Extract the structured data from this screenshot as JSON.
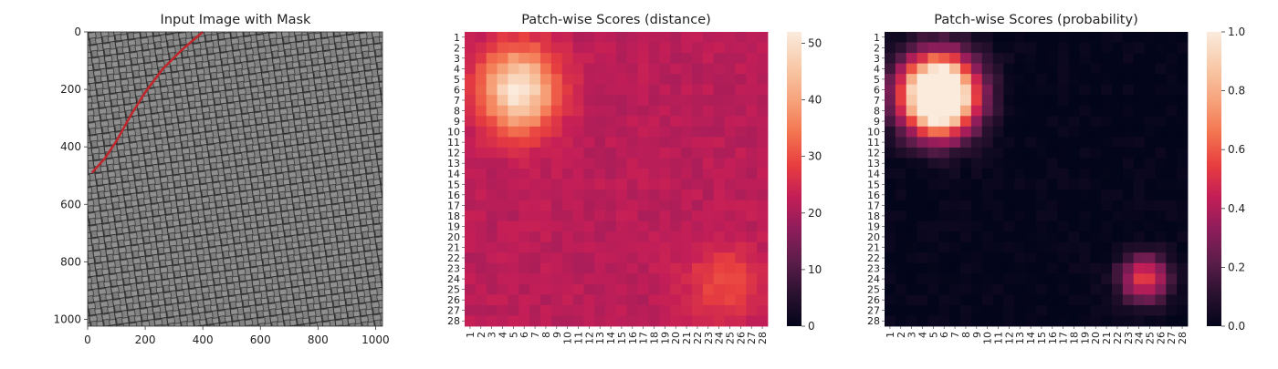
{
  "figure": {
    "panels": [
      {
        "title": "Input Image with Mask"
      },
      {
        "title": "Patch-wise Scores (distance)"
      },
      {
        "title": "Patch-wise Scores (probability)"
      }
    ]
  },
  "chart_data": [
    {
      "type": "image",
      "title": "Input Image with Mask",
      "xlim": [
        0,
        1024
      ],
      "ylim": [
        1024,
        0
      ],
      "xticks": [
        0,
        200,
        400,
        600,
        800,
        1000
      ],
      "yticks": [
        0,
        200,
        400,
        600,
        800,
        1000
      ],
      "mask_curve": [
        [
          400,
          0
        ],
        [
          330,
          60
        ],
        [
          260,
          130
        ],
        [
          200,
          210
        ],
        [
          150,
          290
        ],
        [
          100,
          380
        ],
        [
          60,
          440
        ],
        [
          15,
          490
        ]
      ],
      "colors": {
        "mask": "#c0262b",
        "background": "#4d4d4d"
      }
    },
    {
      "type": "heatmap",
      "title": "Patch-wise Scores (distance)",
      "rows": 28,
      "cols": 28,
      "row_labels": [
        "1",
        "2",
        "3",
        "4",
        "5",
        "6",
        "7",
        "8",
        "9",
        "10",
        "11",
        "12",
        "13",
        "14",
        "15",
        "16",
        "17",
        "18",
        "19",
        "20",
        "21",
        "22",
        "23",
        "24",
        "25",
        "26",
        "27",
        "28"
      ],
      "col_labels": [
        "1",
        "2",
        "3",
        "4",
        "5",
        "6",
        "7",
        "8",
        "9",
        "10",
        "11",
        "12",
        "13",
        "14",
        "15",
        "16",
        "17",
        "18",
        "19",
        "20",
        "21",
        "22",
        "23",
        "24",
        "25",
        "26",
        "27",
        "28"
      ],
      "colorbar": {
        "min": 0,
        "max": 52,
        "ticks": [
          0,
          10,
          20,
          30,
          40,
          50
        ]
      },
      "base": 22,
      "hotspots": [
        {
          "row": 6,
          "col": 5.5,
          "peak": 52,
          "sigma_r": 2.8,
          "sigma_c": 2.4
        },
        {
          "row": 24.5,
          "col": 24.5,
          "peak": 30,
          "sigma_r": 2.5,
          "sigma_c": 2.5
        }
      ]
    },
    {
      "type": "heatmap",
      "title": "Patch-wise Scores (probability)",
      "rows": 28,
      "cols": 28,
      "row_labels": [
        "1",
        "2",
        "3",
        "4",
        "5",
        "6",
        "7",
        "8",
        "9",
        "10",
        "11",
        "12",
        "13",
        "14",
        "15",
        "16",
        "17",
        "18",
        "19",
        "20",
        "21",
        "22",
        "23",
        "24",
        "25",
        "26",
        "27",
        "28"
      ],
      "col_labels": [
        "1",
        "2",
        "3",
        "4",
        "5",
        "6",
        "7",
        "8",
        "9",
        "10",
        "11",
        "12",
        "13",
        "14",
        "15",
        "16",
        "17",
        "18",
        "19",
        "20",
        "21",
        "22",
        "23",
        "24",
        "25",
        "26",
        "27",
        "28"
      ],
      "colorbar": {
        "min": 0.0,
        "max": 1.0,
        "ticks": [
          "0.0",
          "0.2",
          "0.4",
          "0.6",
          "0.8",
          "1.0"
        ]
      },
      "base": 0,
      "hotspots": [
        {
          "row": 6.5,
          "col": 5.5,
          "peak": 1.6,
          "sigma_r": 2.6,
          "sigma_c": 2.4
        },
        {
          "row": 24,
          "col": 24.5,
          "peak": 0.55,
          "sigma_r": 1.6,
          "sigma_c": 1.6
        }
      ]
    }
  ],
  "colormap": [
    "#03051a",
    "#2a1130",
    "#5c1d4a",
    "#8e1d5b",
    "#c41e57",
    "#e83f3f",
    "#f37651",
    "#f6a47c",
    "#f8c9a8",
    "#faebdd"
  ]
}
